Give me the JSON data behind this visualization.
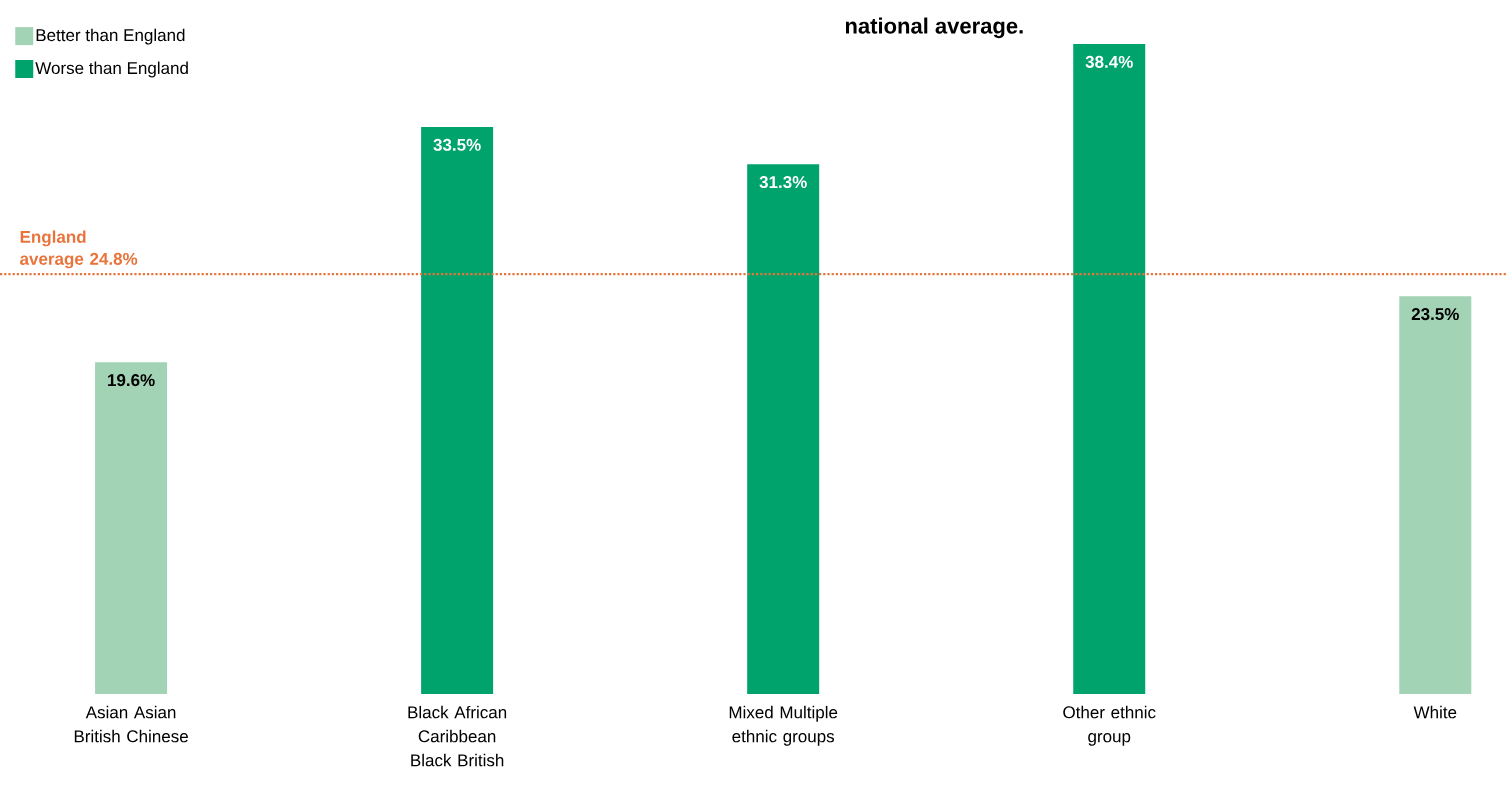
{
  "chart_data": {
    "type": "bar",
    "title": "national average.",
    "categories": [
      "Asian Asian British Chinese",
      "Black African Caribbean Black British",
      "Mixed Multiple ethnic groups",
      "Other ethnic group",
      "White"
    ],
    "series": [
      {
        "name": "Better than England",
        "color": "#a3d3b5",
        "values": [
          19.6,
          null,
          null,
          null,
          23.5
        ],
        "value_labels": [
          "19.6%",
          null,
          null,
          null,
          "23.5%"
        ]
      },
      {
        "name": "Worse than England",
        "color": "#00a36c",
        "values": [
          null,
          33.5,
          31.3,
          38.4,
          null
        ],
        "value_labels": [
          null,
          "33.5%",
          "31.3%",
          "38.4%",
          null
        ]
      }
    ],
    "ylim": [
      0,
      38.4
    ],
    "legend": "top left",
    "ref_lines": [
      {
        "axis": "y",
        "value": 24.8,
        "label": "England average 24.8%",
        "color": "#e8743b",
        "line_style": "dotted"
      }
    ]
  }
}
